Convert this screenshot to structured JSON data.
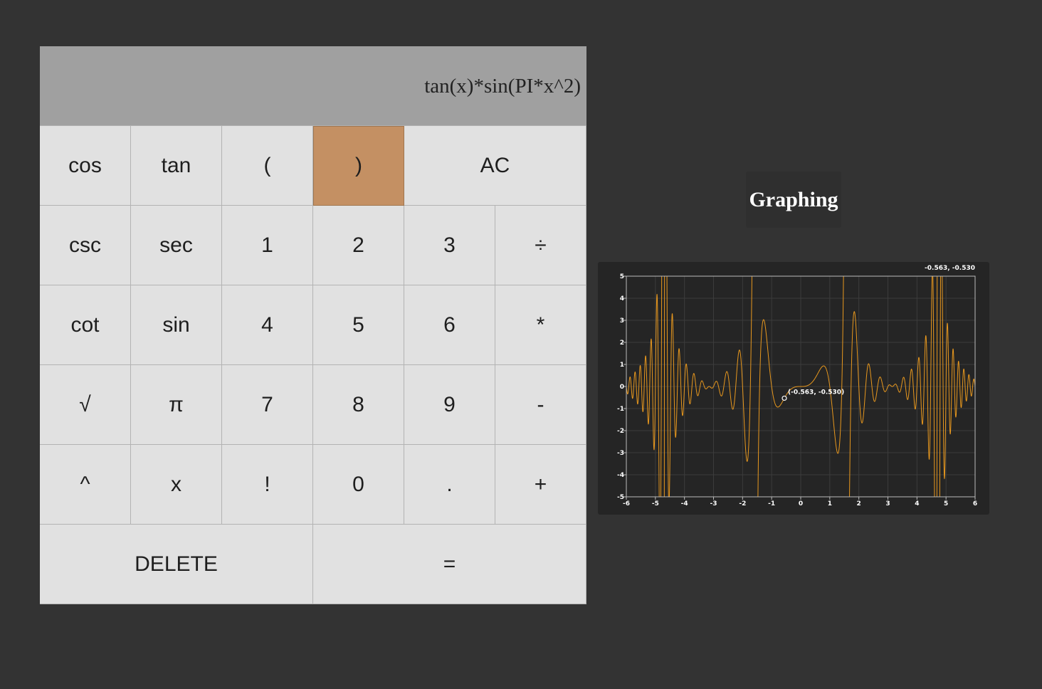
{
  "display": {
    "expression": "tan(x)*sin(PI*x^2)"
  },
  "keypad": {
    "keys": [
      {
        "label": "cos",
        "name": "cos-key"
      },
      {
        "label": "tan",
        "name": "tan-key"
      },
      {
        "label": "(",
        "name": "open-paren-key"
      },
      {
        "label": ")",
        "name": "close-paren-key",
        "active": true
      },
      {
        "label": "AC",
        "name": "all-clear-key",
        "span": 2
      },
      {
        "label": "csc",
        "name": "csc-key"
      },
      {
        "label": "sec",
        "name": "sec-key"
      },
      {
        "label": "1",
        "name": "digit-1-key"
      },
      {
        "label": "2",
        "name": "digit-2-key"
      },
      {
        "label": "3",
        "name": "digit-3-key"
      },
      {
        "label": "÷",
        "name": "divide-key"
      },
      {
        "label": "cot",
        "name": "cot-key"
      },
      {
        "label": "sin",
        "name": "sin-key"
      },
      {
        "label": "4",
        "name": "digit-4-key"
      },
      {
        "label": "5",
        "name": "digit-5-key"
      },
      {
        "label": "6",
        "name": "digit-6-key"
      },
      {
        "label": "*",
        "name": "multiply-key"
      },
      {
        "label": "√",
        "name": "sqrt-key"
      },
      {
        "label": "π",
        "name": "pi-key"
      },
      {
        "label": "7",
        "name": "digit-7-key"
      },
      {
        "label": "8",
        "name": "digit-8-key"
      },
      {
        "label": "9",
        "name": "digit-9-key"
      },
      {
        "label": "-",
        "name": "minus-key"
      },
      {
        "label": "^",
        "name": "power-key"
      },
      {
        "label": "x",
        "name": "x-variable-key"
      },
      {
        "label": "!",
        "name": "factorial-key"
      },
      {
        "label": "0",
        "name": "digit-0-key"
      },
      {
        "label": ".",
        "name": "decimal-key"
      },
      {
        "label": "+",
        "name": "plus-key"
      },
      {
        "label": "DELETE",
        "name": "delete-key",
        "span": 3
      },
      {
        "label": "=",
        "name": "equals-key",
        "span": 3
      }
    ]
  },
  "graph_button": {
    "label": "Graphing"
  },
  "graph": {
    "hover_readout": "-0.563, -0.530",
    "hover_point_label": "(-0.563, -0.530)",
    "line_color": "#e8981e",
    "background_color": "#252525"
  },
  "chart_data": {
    "type": "line",
    "function": "tan(x)*sin(PI*x^2)",
    "xlim": [
      -6,
      6
    ],
    "ylim": [
      -5,
      5
    ],
    "x_ticks": [
      "-6",
      "-5",
      "-4",
      "-3",
      "-2",
      "-1",
      "0",
      "1",
      "2",
      "3",
      "4",
      "5",
      "6"
    ],
    "y_ticks": [
      "5",
      "4",
      "3",
      "2",
      "1",
      "0",
      "-1",
      "-2",
      "-3",
      "-4",
      "-5"
    ],
    "grid": true,
    "highlight_point": {
      "x": -0.563,
      "y": -0.53
    }
  }
}
